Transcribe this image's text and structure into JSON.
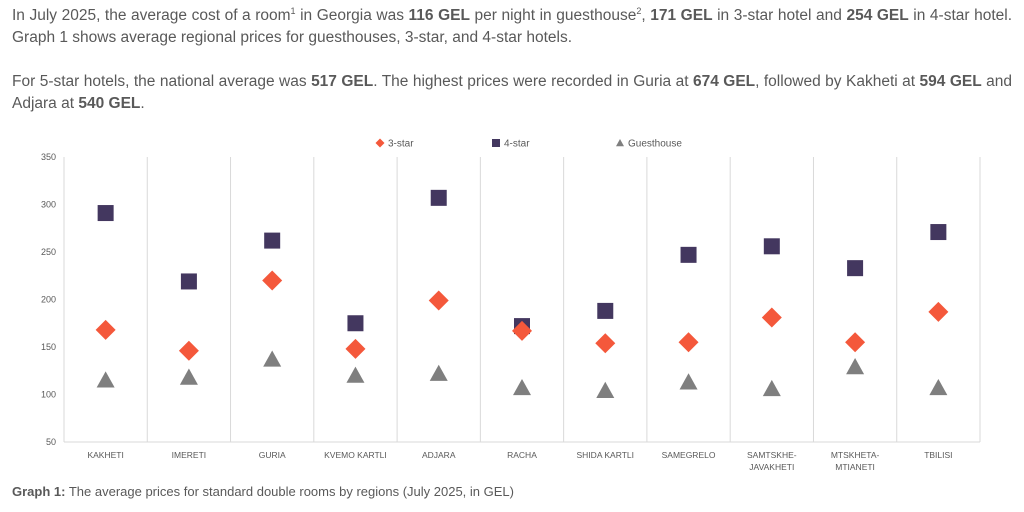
{
  "paragraph1": {
    "s1": "In July 2025, the average cost of a room",
    "sup1": "1",
    "s2": " in Georgia was ",
    "b1": "116 GEL",
    "s3": " per night in guesthouse",
    "sup2": "2",
    "s4": ", ",
    "b2": "171 GEL",
    "s5": " in 3-star hotel and ",
    "b3": "254 GEL",
    "s6": " in 4-star hotel. Graph 1 shows average regional prices for guesthouses, 3-star, and 4-star hotels."
  },
  "paragraph2": {
    "s1": "For 5-star hotels, the national average was ",
    "b1": "517 GEL",
    "s2": ". The highest prices were recorded in Guria at ",
    "b2": "674 GEL",
    "s3": ", followed by Kakheti at ",
    "b3": "594 GEL",
    "s4": " and Adjara at ",
    "b4": "540 GEL",
    "s5": "."
  },
  "caption": {
    "label": "Graph 1:",
    "text": " The average prices for standard double rooms by regions (July 2025, in GEL)"
  },
  "chart_data": {
    "type": "scatter",
    "categories": [
      [
        "KAKHETI"
      ],
      [
        "IMERETI"
      ],
      [
        "GURIA"
      ],
      [
        "KVEMO KARTLI"
      ],
      [
        "ADJARA"
      ],
      [
        "RACHA"
      ],
      [
        "SHIDA KARTLI"
      ],
      [
        "SAMEGRELO"
      ],
      [
        "SAMTSKHE-",
        "JAVAKHETI"
      ],
      [
        "MTSKHETA-",
        "MTIANETI"
      ],
      [
        "TBILISI"
      ]
    ],
    "series": [
      {
        "name": "3-star",
        "marker": "diamond",
        "color": "#f4583b",
        "values": [
          168,
          146,
          220,
          148,
          199,
          167,
          154,
          155,
          181,
          155,
          187
        ]
      },
      {
        "name": "4-star",
        "marker": "square",
        "color": "#43375f",
        "values": [
          291,
          219,
          262,
          175,
          307,
          172,
          188,
          247,
          256,
          233,
          271
        ]
      },
      {
        "name": "Guesthouse",
        "marker": "triangle",
        "color": "#7f7f7f",
        "values": [
          115,
          118,
          137,
          120,
          122,
          107,
          104,
          113,
          106,
          129,
          107
        ]
      }
    ],
    "ylim": [
      50,
      350
    ],
    "yticks": [
      50,
      100,
      150,
      200,
      250,
      300,
      350
    ],
    "legend_position": "top-center",
    "grid": "vertical separators"
  }
}
